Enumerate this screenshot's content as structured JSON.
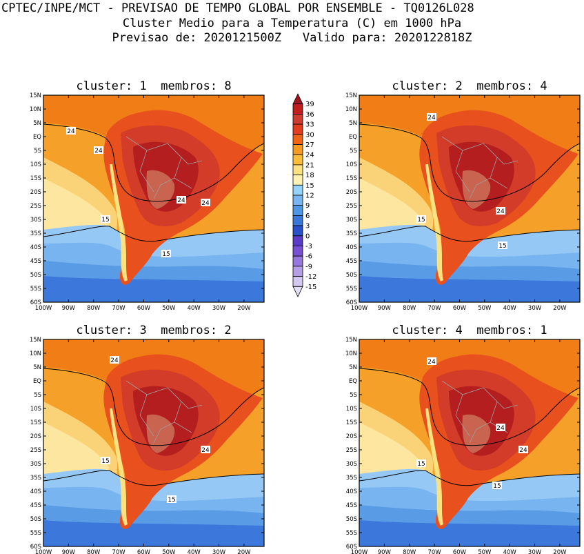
{
  "header": {
    "line1": "CPTEC/INPE/MCT - PREVISAO DE TEMPO GLOBAL POR ENSEMBLE - TQ0126L028",
    "line2": "Cluster Medio para a Temperatura (C) em 1000 hPa",
    "line3": "Previsao de: 2020121500Z   Valido para: 2020122818Z"
  },
  "panels": [
    {
      "title": "cluster: 1  membros: 8"
    },
    {
      "title": "cluster: 2  membros: 4"
    },
    {
      "title": "cluster: 3  membros: 2"
    },
    {
      "title": "cluster: 4  membros: 1"
    }
  ],
  "axes": {
    "lat_labels": [
      "15N",
      "10N",
      "5N",
      "EQ",
      "5S",
      "10S",
      "15S",
      "20S",
      "25S",
      "30S",
      "35S",
      "40S",
      "45S",
      "50S",
      "55S",
      "60S"
    ],
    "lon_labels": [
      "100W",
      "90W",
      "80W",
      "70W",
      "60W",
      "50W",
      "40W",
      "30W",
      "20W"
    ]
  },
  "colorbar": {
    "labels": [
      "39",
      "36",
      "33",
      "30",
      "27",
      "24",
      "21",
      "18",
      "15",
      "12",
      "9",
      "6",
      "3",
      "0",
      "-3",
      "-6",
      "-9",
      "-12",
      "-15"
    ],
    "colors": [
      "#a0141e",
      "#c21e1e",
      "#cf3c32",
      "#e43c1e",
      "#f06414",
      "#f59a23",
      "#fabe3c",
      "#fae182",
      "#fff0b4",
      "#96d2fa",
      "#78b4f0",
      "#5096e6",
      "#3c78dc",
      "#2850c8",
      "#5a3cc8",
      "#7850d2",
      "#9678dc",
      "#b4a0e6",
      "#d2c8f0",
      "#e6e0f5"
    ]
  },
  "contour_labels": [
    "24",
    "15"
  ],
  "colors": {
    "ocean_warm": "#f07d16",
    "ocean_mid": "#f5a028",
    "ocean_cool": "#fad278",
    "cold_1": "#96c8f5",
    "cold_2": "#5a9be6",
    "cold_3": "#3c78dc",
    "land_hot": "#d23c28",
    "land_hotter": "#b41e1e",
    "land_hottest": "#c86450",
    "border": "#a0a0a0"
  }
}
